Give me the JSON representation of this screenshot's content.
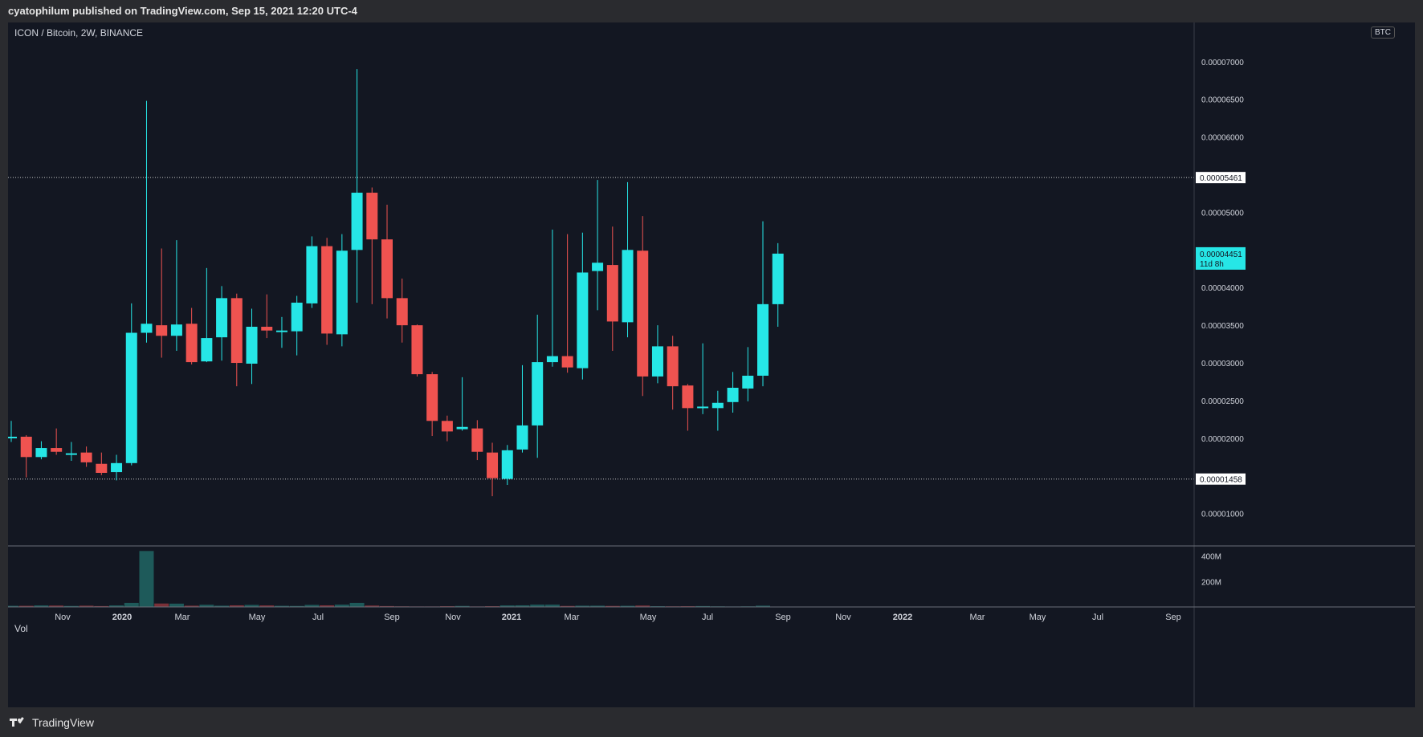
{
  "header": {
    "text": "cyatophilum published on TradingView.com, Sep 15, 2021 12:20 UTC-4"
  },
  "legend": {
    "symbol": "ICON / Bitcoin, 2W, BINANCE"
  },
  "currency_badge": "BTC",
  "volume_label": "Vol",
  "footer": {
    "brand": "TradingView"
  },
  "colors": {
    "up": "#26e6e6",
    "down": "#ef5350",
    "up_vol": "#1e5a5a",
    "down_vol": "#7a3038",
    "background": "#131722",
    "frame": "#2a2b2f"
  },
  "chart_data": {
    "type": "candlestick",
    "title": "ICON / Bitcoin, 2W, BINANCE",
    "ylim": [
      5.7e-06,
      7.52e-05
    ],
    "y_ticks": [
      "0.00007000",
      "0.00006500",
      "0.00006000",
      "0.00005000",
      "0.00004000",
      "0.00003500",
      "0.00003000",
      "0.00002500",
      "0.00002000",
      "0.00001000"
    ],
    "x_ticks": [
      "Nov",
      "2020",
      "Mar",
      "May",
      "Jul",
      "Sep",
      "Nov",
      "2021",
      "Mar",
      "May",
      "Jul",
      "Sep",
      "Nov",
      "2022",
      "Mar",
      "May",
      "Jul",
      "Sep"
    ],
    "horizontal_levels": [
      "0.00005461",
      "0.00001458"
    ],
    "last_price": {
      "value": "0.00004451",
      "countdown": "11d 8h"
    },
    "volume": {
      "ylim": [
        0,
        480
      ],
      "ticks": [
        "400M",
        "200M"
      ]
    },
    "candles": [
      {
        "o": 20.2,
        "h": 22.3,
        "l": 19.5,
        "c": 20.2,
        "v": 9
      },
      {
        "o": 20.2,
        "h": 20.4,
        "l": 14.8,
        "c": 17.5,
        "v": 9
      },
      {
        "o": 17.5,
        "h": 19.6,
        "l": 17.2,
        "c": 18.7,
        "v": 12
      },
      {
        "o": 18.7,
        "h": 21.3,
        "l": 17.8,
        "c": 18.2,
        "v": 11
      },
      {
        "o": 18.0,
        "h": 19.5,
        "l": 17.0,
        "c": 18.0,
        "v": 8
      },
      {
        "o": 18.1,
        "h": 18.9,
        "l": 16.2,
        "c": 16.8,
        "v": 10
      },
      {
        "o": 16.6,
        "h": 18.1,
        "l": 15.1,
        "c": 15.4,
        "v": 7
      },
      {
        "o": 15.5,
        "h": 17.8,
        "l": 14.4,
        "c": 16.7,
        "v": 12
      },
      {
        "o": 16.7,
        "h": 37.9,
        "l": 16.4,
        "c": 34.0,
        "v": 32
      },
      {
        "o": 34.0,
        "h": 64.8,
        "l": 32.7,
        "c": 35.2,
        "v": 440
      },
      {
        "o": 35.0,
        "h": 45.2,
        "l": 30.7,
        "c": 33.6,
        "v": 27
      },
      {
        "o": 33.6,
        "h": 46.3,
        "l": 31.6,
        "c": 35.1,
        "v": 26
      },
      {
        "o": 35.2,
        "h": 37.3,
        "l": 29.8,
        "c": 30.1,
        "v": 10
      },
      {
        "o": 30.2,
        "h": 42.6,
        "l": 30.1,
        "c": 33.3,
        "v": 17
      },
      {
        "o": 33.4,
        "h": 40.2,
        "l": 30.3,
        "c": 38.6,
        "v": 10
      },
      {
        "o": 38.6,
        "h": 39.2,
        "l": 26.9,
        "c": 30.0,
        "v": 13
      },
      {
        "o": 29.9,
        "h": 37.2,
        "l": 27.2,
        "c": 34.8,
        "v": 16
      },
      {
        "o": 34.8,
        "h": 39.1,
        "l": 33.3,
        "c": 34.3,
        "v": 12
      },
      {
        "o": 34.3,
        "h": 36.1,
        "l": 32.0,
        "c": 34.3,
        "v": 9
      },
      {
        "o": 34.2,
        "h": 38.9,
        "l": 31.0,
        "c": 38.0,
        "v": 8
      },
      {
        "o": 37.9,
        "h": 46.8,
        "l": 37.3,
        "c": 45.5,
        "v": 16
      },
      {
        "o": 45.5,
        "h": 46.6,
        "l": 32.4,
        "c": 33.9,
        "v": 13
      },
      {
        "o": 33.8,
        "h": 47.1,
        "l": 32.2,
        "c": 44.9,
        "v": 18
      },
      {
        "o": 45.0,
        "h": 69.0,
        "l": 38.0,
        "c": 52.6,
        "v": 32
      },
      {
        "o": 52.6,
        "h": 53.3,
        "l": 37.8,
        "c": 46.4,
        "v": 11
      },
      {
        "o": 46.4,
        "h": 51.0,
        "l": 35.9,
        "c": 38.6,
        "v": 7
      },
      {
        "o": 38.6,
        "h": 41.2,
        "l": 32.7,
        "c": 35.0,
        "v": 5
      },
      {
        "o": 35.0,
        "h": 35.1,
        "l": 28.2,
        "c": 28.5,
        "v": 4
      },
      {
        "o": 28.5,
        "h": 28.8,
        "l": 20.3,
        "c": 22.3,
        "v": 4
      },
      {
        "o": 22.3,
        "h": 23.0,
        "l": 19.6,
        "c": 20.9,
        "v": 6
      },
      {
        "o": 21.2,
        "h": 28.1,
        "l": 21.0,
        "c": 21.5,
        "v": 8
      },
      {
        "o": 21.3,
        "h": 22.4,
        "l": 17.1,
        "c": 18.2,
        "v": 4
      },
      {
        "o": 18.1,
        "h": 19.4,
        "l": 12.3,
        "c": 14.7,
        "v": 6
      },
      {
        "o": 14.6,
        "h": 19.1,
        "l": 13.8,
        "c": 18.4,
        "v": 12
      },
      {
        "o": 18.5,
        "h": 29.7,
        "l": 18.1,
        "c": 21.7,
        "v": 13
      },
      {
        "o": 21.7,
        "h": 36.4,
        "l": 17.4,
        "c": 30.1,
        "v": 18
      },
      {
        "o": 30.1,
        "h": 47.7,
        "l": 29.5,
        "c": 30.9,
        "v": 18
      },
      {
        "o": 30.9,
        "h": 47.1,
        "l": 28.7,
        "c": 29.4,
        "v": 8
      },
      {
        "o": 29.3,
        "h": 47.3,
        "l": 27.8,
        "c": 42.0,
        "v": 10
      },
      {
        "o": 42.2,
        "h": 54.3,
        "l": 37.0,
        "c": 43.3,
        "v": 10
      },
      {
        "o": 43.0,
        "h": 48.1,
        "l": 31.6,
        "c": 35.5,
        "v": 8
      },
      {
        "o": 35.4,
        "h": 54.0,
        "l": 33.4,
        "c": 45.0,
        "v": 9
      },
      {
        "o": 44.9,
        "h": 49.5,
        "l": 25.6,
        "c": 28.2,
        "v": 11
      },
      {
        "o": 28.2,
        "h": 35.0,
        "l": 27.3,
        "c": 32.2,
        "v": 6
      },
      {
        "o": 32.2,
        "h": 33.6,
        "l": 23.8,
        "c": 26.9,
        "v": 5
      },
      {
        "o": 27.0,
        "h": 27.2,
        "l": 21.0,
        "c": 24.0,
        "v": 6
      },
      {
        "o": 24.0,
        "h": 32.6,
        "l": 23.2,
        "c": 24.2,
        "v": 7
      },
      {
        "o": 24.0,
        "h": 26.3,
        "l": 21.0,
        "c": 24.7,
        "v": 5
      },
      {
        "o": 24.8,
        "h": 28.8,
        "l": 23.4,
        "c": 26.7,
        "v": 4
      },
      {
        "o": 26.6,
        "h": 32.1,
        "l": 24.9,
        "c": 28.3,
        "v": 5
      },
      {
        "o": 28.3,
        "h": 48.8,
        "l": 26.9,
        "c": 37.8,
        "v": 10
      },
      {
        "o": 37.8,
        "h": 45.9,
        "l": 34.8,
        "c": 44.51,
        "v": 3
      }
    ]
  }
}
